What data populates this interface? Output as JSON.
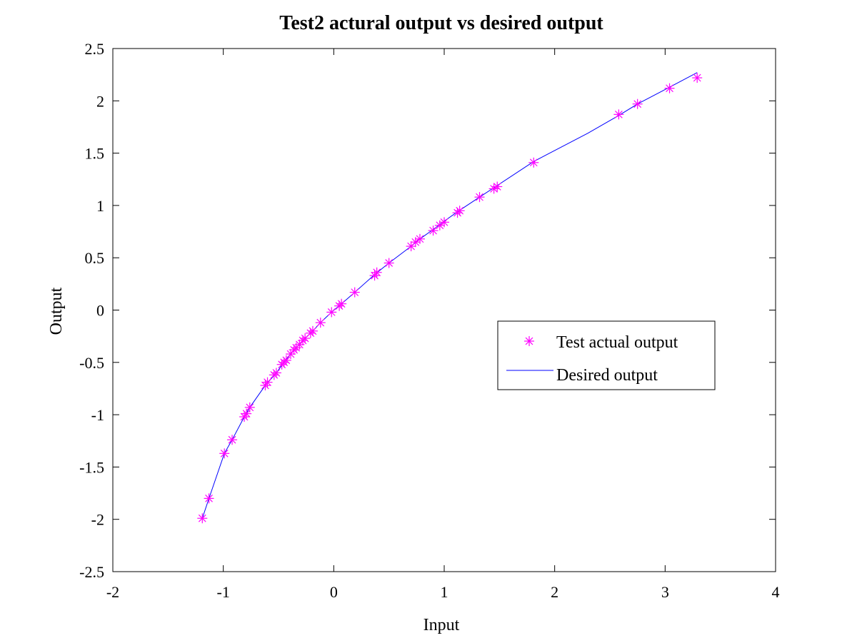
{
  "chart_data": {
    "type": "line",
    "title": "Test2 actural output vs desired output",
    "xlabel": "Input",
    "ylabel": "Output",
    "xlim": [
      -2,
      4
    ],
    "ylim": [
      -2.5,
      2.5
    ],
    "xticks": [
      "-2",
      "-1",
      "0",
      "1",
      "2",
      "3",
      "4"
    ],
    "yticks": [
      "2.5",
      "2",
      "1.5",
      "1",
      "0.5",
      "0",
      "-0.5",
      "-1",
      "-1.5",
      "-2",
      "-2.5"
    ],
    "grid": false,
    "legend": {
      "position": "right-middle",
      "entries": [
        "Test actual output",
        "Desired output"
      ]
    },
    "colors": {
      "actual": "#ff00ff",
      "desired": "#0000ff",
      "axes": "#000000"
    },
    "series": [
      {
        "name": "Test actual output",
        "marker": "asterisk",
        "x": [
          -1.19,
          -1.13,
          -0.99,
          -0.92,
          -0.81,
          -0.79,
          -0.76,
          -0.62,
          -0.6,
          -0.54,
          -0.52,
          -0.47,
          -0.45,
          -0.43,
          -0.39,
          -0.36,
          -0.34,
          -0.31,
          -0.28,
          -0.26,
          -0.21,
          -0.19,
          -0.12,
          -0.02,
          0.05,
          0.07,
          0.19,
          0.37,
          0.39,
          0.5,
          0.7,
          0.74,
          0.78,
          0.9,
          0.96,
          1.0,
          1.12,
          1.14,
          1.32,
          1.45,
          1.48,
          1.81,
          2.58,
          2.75,
          3.04,
          3.29
        ],
        "y": [
          -1.99,
          -1.8,
          -1.37,
          -1.24,
          -1.02,
          -0.99,
          -0.93,
          -0.72,
          -0.69,
          -0.62,
          -0.6,
          -0.52,
          -0.5,
          -0.48,
          -0.42,
          -0.38,
          -0.36,
          -0.33,
          -0.29,
          -0.27,
          -0.22,
          -0.2,
          -0.12,
          -0.02,
          0.04,
          0.06,
          0.17,
          0.33,
          0.36,
          0.45,
          0.61,
          0.65,
          0.68,
          0.76,
          0.81,
          0.84,
          0.93,
          0.95,
          1.08,
          1.16,
          1.18,
          1.41,
          1.87,
          1.97,
          2.12,
          2.22
        ]
      },
      {
        "name": "Desired output",
        "marker": "none",
        "x": [
          -1.19,
          -1.13,
          -0.99,
          -0.92,
          -0.81,
          -0.76,
          -0.62,
          -0.52,
          -0.43,
          -0.34,
          -0.26,
          -0.19,
          -0.12,
          -0.02,
          0.07,
          0.19,
          0.37,
          0.5,
          0.7,
          0.78,
          0.9,
          1.0,
          1.12,
          1.32,
          1.48,
          1.81,
          2.3,
          2.58,
          2.75,
          3.04,
          3.29
        ],
        "y": [
          -1.99,
          -1.8,
          -1.37,
          -1.24,
          -1.02,
          -0.93,
          -0.72,
          -0.6,
          -0.47,
          -0.36,
          -0.27,
          -0.2,
          -0.12,
          -0.02,
          0.06,
          0.17,
          0.34,
          0.45,
          0.61,
          0.68,
          0.77,
          0.85,
          0.94,
          1.08,
          1.19,
          1.42,
          1.69,
          1.86,
          1.97,
          2.13,
          2.27
        ]
      }
    ]
  }
}
